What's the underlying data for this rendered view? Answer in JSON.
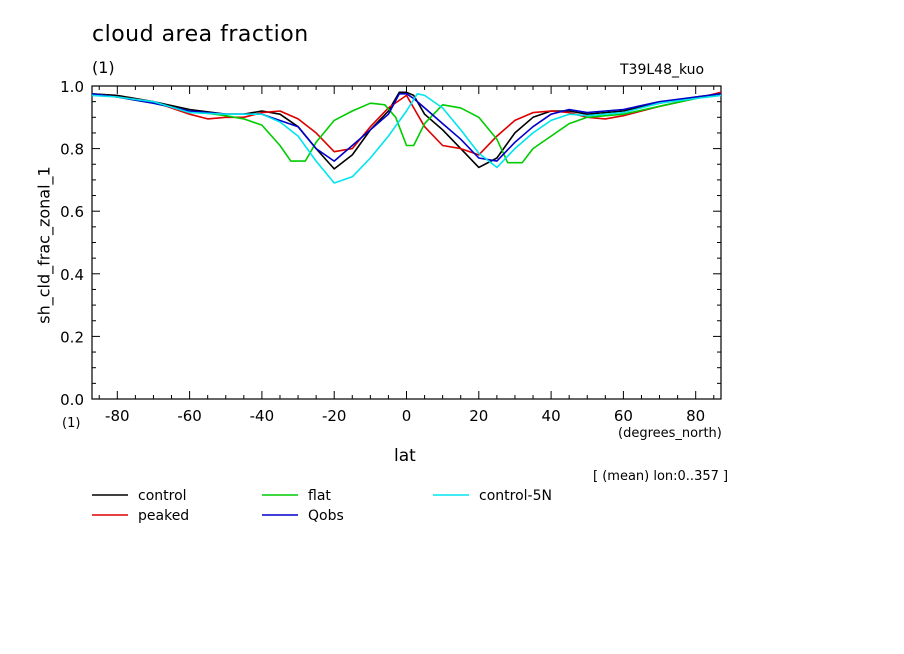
{
  "header": {
    "title": "cloud area fraction",
    "units": "(1)",
    "run_name": "T39L48_kuo",
    "averaging_note": "[ (mean) lon:0..357 ]"
  },
  "chart_data": {
    "type": "line",
    "title": "cloud area fraction",
    "xlabel": "lat",
    "xunits": "(degrees_north)",
    "ylabel": "sh_cld_frac_zonal_1",
    "yunits": "(1)",
    "xlim": [
      -87,
      87
    ],
    "ylim": [
      0,
      1
    ],
    "xticks": [
      -80,
      -60,
      -40,
      -20,
      0,
      20,
      40,
      60,
      80
    ],
    "yticks": [
      "0.0",
      "0.2",
      "0.4",
      "0.6",
      "0.8",
      "1.0"
    ],
    "grid": false,
    "legend_position": "bottom",
    "series": [
      {
        "name": "control",
        "color": "#000000",
        "x": [
          -87,
          -80,
          -70,
          -60,
          -50,
          -45,
          -40,
          -35,
          -30,
          -25,
          -20,
          -15,
          -10,
          -5,
          -2,
          0,
          2,
          5,
          10,
          15,
          20,
          25,
          30,
          35,
          40,
          45,
          50,
          60,
          70,
          80,
          87
        ],
        "y": [
          0.975,
          0.97,
          0.95,
          0.925,
          0.91,
          0.91,
          0.92,
          0.91,
          0.87,
          0.8,
          0.735,
          0.78,
          0.86,
          0.92,
          0.98,
          0.98,
          0.97,
          0.91,
          0.86,
          0.8,
          0.74,
          0.77,
          0.85,
          0.9,
          0.92,
          0.92,
          0.91,
          0.92,
          0.945,
          0.965,
          0.975
        ]
      },
      {
        "name": "peaked",
        "color": "#dd0000",
        "x": [
          -87,
          -80,
          -70,
          -60,
          -55,
          -50,
          -45,
          -40,
          -35,
          -30,
          -25,
          -20,
          -15,
          -10,
          -5,
          0,
          5,
          10,
          15,
          20,
          25,
          30,
          35,
          40,
          45,
          50,
          55,
          60,
          70,
          80,
          87
        ],
        "y": [
          0.975,
          0.965,
          0.95,
          0.91,
          0.895,
          0.9,
          0.9,
          0.915,
          0.92,
          0.895,
          0.85,
          0.79,
          0.8,
          0.87,
          0.93,
          0.97,
          0.87,
          0.81,
          0.8,
          0.78,
          0.84,
          0.89,
          0.915,
          0.92,
          0.915,
          0.9,
          0.895,
          0.905,
          0.935,
          0.96,
          0.98
        ]
      },
      {
        "name": "flat",
        "color": "#00cc00",
        "x": [
          -87,
          -80,
          -70,
          -60,
          -50,
          -45,
          -40,
          -35,
          -32,
          -28,
          -25,
          -20,
          -15,
          -10,
          -6,
          -3,
          0,
          2,
          5,
          10,
          15,
          20,
          25,
          28,
          32,
          35,
          40,
          45,
          50,
          60,
          70,
          80,
          87
        ],
        "y": [
          0.975,
          0.965,
          0.945,
          0.92,
          0.905,
          0.895,
          0.875,
          0.81,
          0.76,
          0.76,
          0.82,
          0.89,
          0.92,
          0.945,
          0.94,
          0.9,
          0.81,
          0.81,
          0.88,
          0.94,
          0.93,
          0.9,
          0.83,
          0.755,
          0.755,
          0.8,
          0.84,
          0.88,
          0.9,
          0.91,
          0.935,
          0.96,
          0.975
        ]
      },
      {
        "name": "Qobs",
        "color": "#0000cc",
        "x": [
          -87,
          -80,
          -70,
          -60,
          -50,
          -40,
          -30,
          -25,
          -20,
          -15,
          -10,
          -5,
          -2,
          0,
          2,
          5,
          10,
          15,
          20,
          25,
          30,
          35,
          40,
          45,
          50,
          60,
          70,
          80,
          87
        ],
        "y": [
          0.975,
          0.965,
          0.945,
          0.92,
          0.91,
          0.91,
          0.87,
          0.8,
          0.76,
          0.81,
          0.86,
          0.91,
          0.975,
          0.975,
          0.96,
          0.93,
          0.88,
          0.83,
          0.77,
          0.76,
          0.82,
          0.87,
          0.91,
          0.925,
          0.915,
          0.925,
          0.95,
          0.965,
          0.975
        ]
      },
      {
        "name": "control-5N",
        "color": "#00e5ee",
        "x": [
          -87,
          -80,
          -70,
          -60,
          -50,
          -45,
          -40,
          -35,
          -30,
          -25,
          -20,
          -15,
          -10,
          -5,
          0,
          3,
          5,
          10,
          15,
          20,
          25,
          30,
          35,
          40,
          45,
          50,
          60,
          70,
          80,
          87
        ],
        "y": [
          0.97,
          0.965,
          0.95,
          0.915,
          0.91,
          0.91,
          0.91,
          0.885,
          0.84,
          0.76,
          0.69,
          0.71,
          0.77,
          0.84,
          0.92,
          0.975,
          0.97,
          0.93,
          0.86,
          0.785,
          0.74,
          0.8,
          0.85,
          0.89,
          0.91,
          0.905,
          0.915,
          0.945,
          0.96,
          0.97
        ]
      }
    ]
  }
}
